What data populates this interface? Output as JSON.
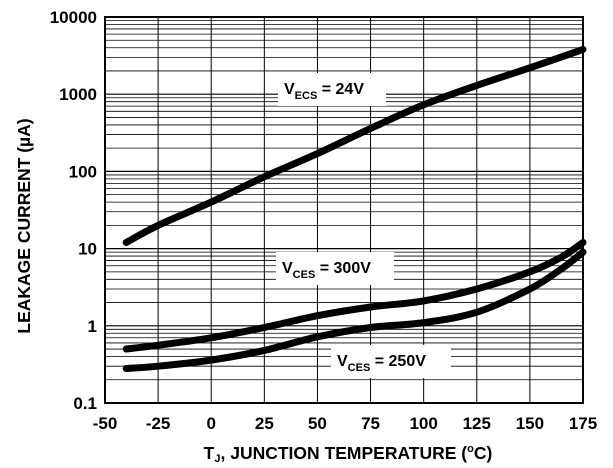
{
  "chart_data": {
    "type": "line",
    "title": "",
    "xlabel_parts": {
      "t": "T",
      "j": "J",
      "rest": ", JUNCTION TEMPERATURE (",
      "deg": "o",
      "unit": "C)"
    },
    "ylabel": "LEAKAGE  CURRENT (µA)",
    "xscale": "linear",
    "yscale": "log",
    "xlim": [
      -50,
      175
    ],
    "ylim": [
      0.1,
      10000
    ],
    "grid": true,
    "legend": "none",
    "x_ticks": [
      "-50",
      "-25",
      "0",
      "25",
      "50",
      "75",
      "100",
      "125",
      "150",
      "175"
    ],
    "x_tick_values": [
      -50,
      -25,
      0,
      25,
      50,
      75,
      100,
      125,
      150,
      175
    ],
    "y_ticks": [
      "10000",
      "1000",
      "100",
      "10",
      "1",
      "0.1"
    ],
    "y_tick_values": [
      10000,
      1000,
      100,
      10,
      1,
      0.1
    ],
    "line_color": "#000000",
    "grid_color": "#000000",
    "series": [
      {
        "label_parts": {
          "v": "V",
          "sub": "ECS",
          "rest": " = 24V"
        },
        "x": [
          -40,
          -25,
          0,
          25,
          50,
          75,
          100,
          125,
          150,
          175
        ],
        "y": [
          12,
          20,
          40,
          85,
          170,
          360,
          730,
          1300,
          2200,
          3800
        ]
      },
      {
        "label_parts": {
          "v": "V",
          "sub": "CES",
          "rest": " = 300V"
        },
        "x": [
          -40,
          -25,
          0,
          25,
          50,
          75,
          100,
          125,
          150,
          165,
          175
        ],
        "y": [
          0.5,
          0.56,
          0.7,
          0.95,
          1.35,
          1.75,
          2.1,
          3.0,
          5.0,
          7.8,
          12
        ]
      },
      {
        "label_parts": {
          "v": "V",
          "sub": "CES",
          "rest": " = 250V"
        },
        "x": [
          -40,
          -25,
          0,
          25,
          50,
          75,
          100,
          125,
          150,
          165,
          175
        ],
        "y": [
          0.28,
          0.3,
          0.36,
          0.48,
          0.72,
          0.95,
          1.1,
          1.5,
          3.0,
          5.5,
          9
        ]
      }
    ]
  }
}
